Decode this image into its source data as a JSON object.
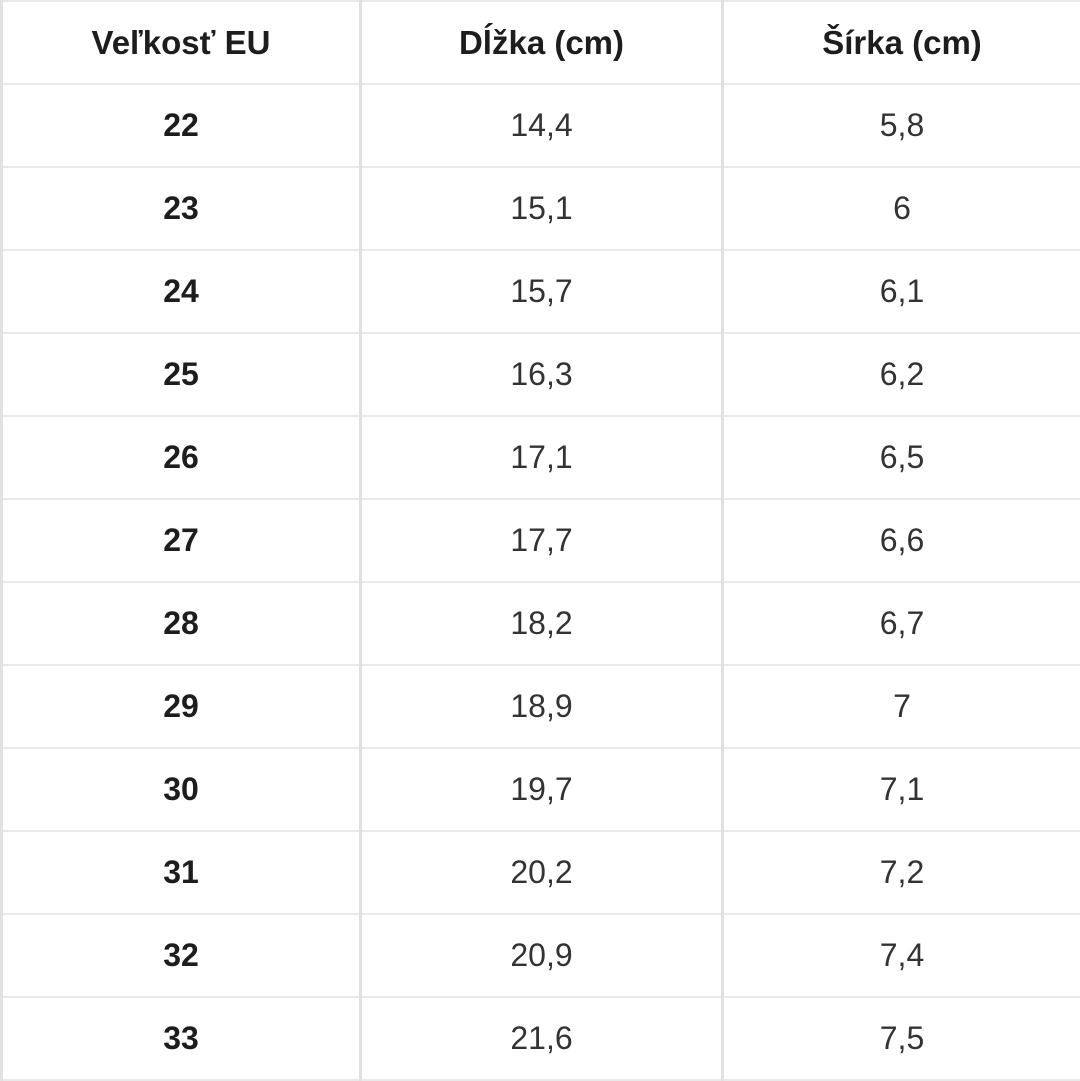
{
  "chart_data": {
    "type": "table",
    "columns": [
      "Veľkosť EU",
      "Dĺžka (cm)",
      "Šírka (cm)"
    ],
    "rows": [
      [
        "22",
        "14,4",
        "5,8"
      ],
      [
        "23",
        "15,1",
        "6"
      ],
      [
        "24",
        "15,7",
        "6,1"
      ],
      [
        "25",
        "16,3",
        "6,2"
      ],
      [
        "26",
        "17,1",
        "6,5"
      ],
      [
        "27",
        "17,7",
        "6,6"
      ],
      [
        "28",
        "18,2",
        "6,7"
      ],
      [
        "29",
        "18,9",
        "7"
      ],
      [
        "30",
        "19,7",
        "7,1"
      ],
      [
        "31",
        "20,2",
        "7,2"
      ],
      [
        "32",
        "20,9",
        "7,4"
      ],
      [
        "33",
        "21,6",
        "7,5"
      ]
    ],
    "layout": {
      "grid": true,
      "header_bold": true,
      "first_column_bold": true
    }
  },
  "colors": {
    "background": "#ffffff",
    "border_vertical": "#e1e1e1",
    "border_horizontal": "#e9e9e9",
    "header_text": "#1d1d1d",
    "body_text": "#333333"
  }
}
